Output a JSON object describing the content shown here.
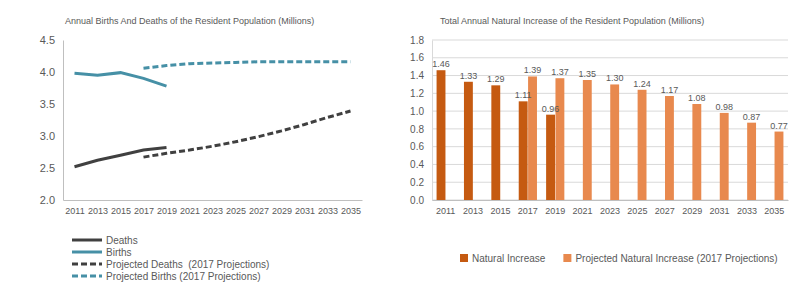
{
  "chart_data": [
    {
      "type": "line",
      "title": "Annual Births And Deaths of the Resident Population (Millions)",
      "x": [
        2011,
        2013,
        2015,
        2017,
        2019,
        2021,
        2023,
        2025,
        2027,
        2029,
        2031,
        2033,
        2035
      ],
      "xlim": [
        2010,
        2036
      ],
      "xticks": [
        2011,
        2013,
        2015,
        2017,
        2019,
        2021,
        2023,
        2025,
        2027,
        2029,
        2031,
        2033,
        2035
      ],
      "ylim": [
        2,
        4.5
      ],
      "yticks": [
        {
          "value": 2,
          "label": "2.0"
        },
        2.5,
        {
          "value": 3,
          "label": "3.0"
        },
        3.5,
        {
          "value": 4,
          "label": "4.0"
        },
        4.5
      ],
      "grid": false,
      "legend": "bottom",
      "series": [
        {
          "name": "Deaths",
          "color": "#404040",
          "line_style": "solid",
          "values": [
            2.52,
            2.62,
            2.7,
            2.78,
            2.82,
            null,
            null,
            null,
            null,
            null,
            null,
            null,
            null
          ]
        },
        {
          "name": "Births",
          "color": "#4690a6",
          "line_style": "solid",
          "values": [
            3.98,
            3.95,
            3.99,
            3.9,
            3.78,
            null,
            null,
            null,
            null,
            null,
            null,
            null,
            null
          ]
        },
        {
          "name": "Projected Deaths  (2017 Projections)",
          "color": "#404040",
          "line_style": "dashed",
          "values": [
            null,
            null,
            null,
            2.67,
            2.73,
            2.78,
            2.84,
            2.91,
            2.99,
            3.08,
            3.18,
            3.29,
            3.39
          ]
        },
        {
          "name": "Projected Births (2017 Projections)",
          "color": "#4690a6",
          "line_style": "dashed",
          "values": [
            null,
            null,
            null,
            4.06,
            4.1,
            4.13,
            4.14,
            4.15,
            4.16,
            4.16,
            4.16,
            4.16,
            4.16
          ]
        }
      ]
    },
    {
      "type": "bar",
      "title": "Total Annual Natural Increase of the Resident Population (Millions)",
      "categories": [
        "2011",
        "2013",
        "2015",
        "2017",
        "2019",
        "2021",
        "2023",
        "2025",
        "2027",
        "2029",
        "2031",
        "2033",
        "2035"
      ],
      "ylim": [
        0,
        1.8
      ],
      "yticks": [
        {
          "value": 0,
          "label": "0.0"
        },
        0.2,
        0.4,
        0.6,
        0.8,
        {
          "value": 1,
          "label": "1.0"
        },
        1.2,
        1.4,
        1.6,
        1.8
      ],
      "grid": true,
      "legend": "bottom",
      "data_labels": true,
      "series": [
        {
          "name": "Natural Increase",
          "color": "#c55a11",
          "values": [
            1.46,
            1.33,
            1.29,
            1.11,
            0.96,
            null,
            null,
            null,
            null,
            null,
            null,
            null,
            null
          ]
        },
        {
          "name": "Projected Natural Increase (2017 Projections)",
          "color": "#e8894e",
          "values": [
            null,
            null,
            null,
            1.39,
            1.37,
            1.35,
            1.3,
            1.24,
            1.17,
            1.08,
            0.98,
            0.87,
            0.77
          ],
          "value_labels": [
            null,
            null,
            null,
            "1.39",
            "1.37",
            "1.35",
            "1.30",
            "1.24",
            "1.17",
            "1.08",
            "0.98",
            "0.87",
            "0.77"
          ]
        }
      ]
    }
  ]
}
